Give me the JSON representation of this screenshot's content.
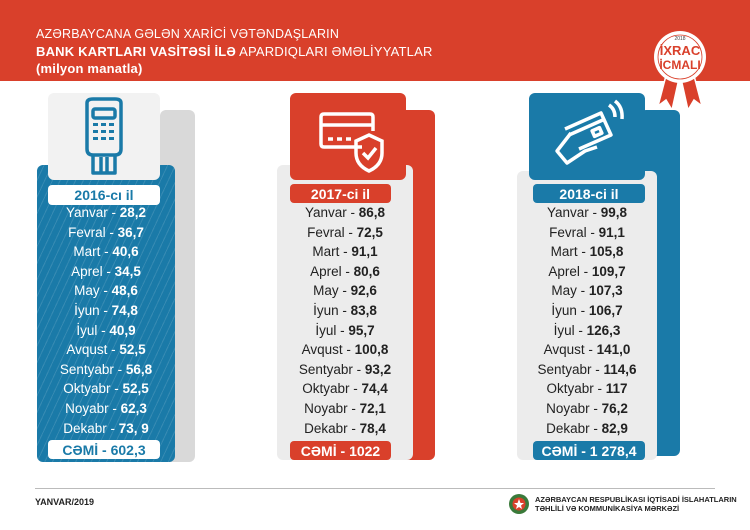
{
  "header": {
    "line1": "AZƏRBAYCANA GƏLƏN XARİCİ VƏTƏNDAŞLARIN",
    "line2_bold": "BANK KARTLARI VASİTƏSİ İLƏ",
    "line2_rest": " APARDIQLARI ƏMƏLİYYATLAR",
    "line3": "(milyon manatla)"
  },
  "badge": {
    "year": "2018",
    "line1": "İXRAC",
    "line2": "İCMALI"
  },
  "colors": {
    "red": "#d9402b",
    "blue": "#1a7aa8",
    "grey": "#ececec"
  },
  "columns": [
    {
      "year": "2016-cı il",
      "icon": "pos-terminal-icon",
      "total_label": "CƏMİ",
      "total": "602,3",
      "months": [
        [
          "Yanvar",
          "28,2"
        ],
        [
          "Fevral",
          "36,7"
        ],
        [
          "Mart",
          "40,6"
        ],
        [
          "Aprel",
          "34,5"
        ],
        [
          "May",
          "48,6"
        ],
        [
          "İyun",
          "74,8"
        ],
        [
          "İyul",
          "40,9"
        ],
        [
          "Avqust",
          "52,5"
        ],
        [
          "Sentyabr",
          "56,8"
        ],
        [
          "Oktyabr",
          "52,5"
        ],
        [
          "Noyabr",
          "62,3"
        ],
        [
          "Dekabr",
          "73, 9"
        ]
      ]
    },
    {
      "year": "2017-ci il",
      "icon": "secure-card-icon",
      "total_label": "CƏMİ",
      "total": "1022",
      "months": [
        [
          "Yanvar",
          "86,8"
        ],
        [
          "Fevral",
          "72,5"
        ],
        [
          "Mart",
          "91,1"
        ],
        [
          "Aprel",
          "80,6"
        ],
        [
          "May",
          "92,6"
        ],
        [
          "İyun",
          "83,8"
        ],
        [
          "İyul",
          "95,7"
        ],
        [
          "Avqust",
          "100,8"
        ],
        [
          "Sentyabr",
          "93,2"
        ],
        [
          "Oktyabr",
          "74,4"
        ],
        [
          "Noyabr",
          "72,1"
        ],
        [
          "Dekabr",
          "78,4"
        ]
      ]
    },
    {
      "year": "2018-ci il",
      "icon": "contactless-card-icon",
      "total_label": "CƏMİ",
      "total": "1 278,4",
      "months": [
        [
          "Yanvar",
          "99,8"
        ],
        [
          "Fevral",
          "91,1"
        ],
        [
          "Mart",
          "105,8"
        ],
        [
          "Aprel",
          "109,7"
        ],
        [
          "May",
          "107,3"
        ],
        [
          "İyun",
          "106,7"
        ],
        [
          "İyul",
          "126,3"
        ],
        [
          "Avqust",
          "141,0"
        ],
        [
          "Sentyabr",
          "114,6"
        ],
        [
          "Oktyabr",
          "117"
        ],
        [
          "Noyabr",
          "76,2"
        ],
        [
          "Dekabr",
          "82,9"
        ]
      ]
    }
  ],
  "footer": {
    "date": "YANVAR/2019",
    "org_line1": "AZƏRBAYCAN RESPUBLİKASI İQTİSADİ İSLAHATLARIN",
    "org_line2": "TƏHLİLİ VƏ KOMMUNİKASİYA MƏRKƏZİ"
  }
}
